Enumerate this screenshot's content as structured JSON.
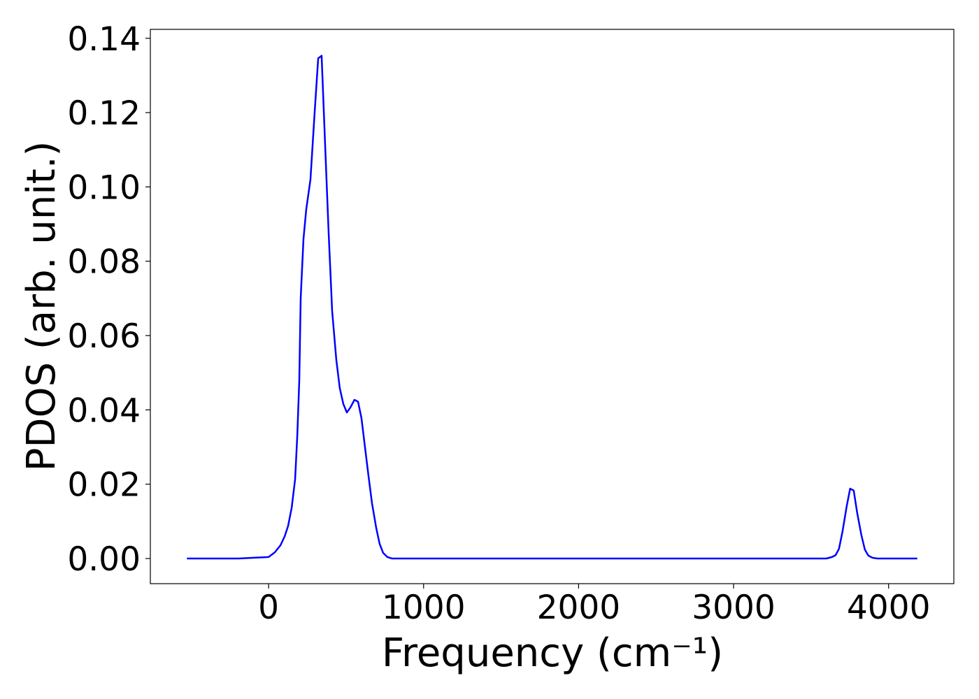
{
  "chart_data": {
    "type": "line",
    "x_label": "Frequency (cm⁻¹)",
    "y_label": "PDOS (arb. unit.)",
    "series": [
      {
        "color": "#0000ff",
        "x": [
          -527,
          -194,
          -104,
          0,
          41,
          77,
          104,
          126,
          149,
          171,
          185,
          198,
          207,
          225,
          243,
          270,
          297,
          320,
          342,
          365,
          387,
          410,
          437,
          459,
          482,
          505,
          527,
          554,
          577,
          599,
          622,
          644,
          667,
          694,
          716,
          739,
          766,
          797,
          3599,
          3635,
          3658,
          3680,
          3703,
          3730,
          3752,
          3775,
          3797,
          3824,
          3847,
          3869,
          3896,
          3928,
          4185
        ],
        "values": [
          0,
          0,
          0.0002,
          0.0004,
          0.0017,
          0.0036,
          0.006,
          0.0088,
          0.0137,
          0.0213,
          0.033,
          0.048,
          0.07,
          0.086,
          0.094,
          0.102,
          0.12,
          0.1346,
          0.1353,
          0.111,
          0.088,
          0.0666,
          0.0534,
          0.0459,
          0.0416,
          0.0393,
          0.0406,
          0.0427,
          0.0422,
          0.0378,
          0.0299,
          0.0224,
          0.0149,
          0.0083,
          0.004,
          0.0015,
          0.0004,
          0,
          0,
          0.0004,
          0.0009,
          0.0026,
          0.0073,
          0.0141,
          0.0188,
          0.0183,
          0.0124,
          0.0064,
          0.0024,
          0.0008,
          0.0002,
          0,
          0
        ]
      }
    ],
    "xlim": [
      -763,
      4421
    ],
    "ylim": [
      -0.00677,
      0.1424
    ],
    "xticks": [
      0,
      1000,
      2000,
      3000,
      4000
    ],
    "yticks": [
      {
        "value": 0,
        "label": "0.00"
      },
      {
        "value": 0.02,
        "label": "0.02"
      },
      {
        "value": 0.04,
        "label": "0.04"
      },
      {
        "value": 0.06,
        "label": "0.06"
      },
      {
        "value": 0.08,
        "label": "0.08"
      },
      {
        "value": 0.1,
        "label": "0.10"
      },
      {
        "value": 0.12,
        "label": "0.12"
      },
      {
        "value": 0.14,
        "label": "0.14"
      }
    ]
  }
}
